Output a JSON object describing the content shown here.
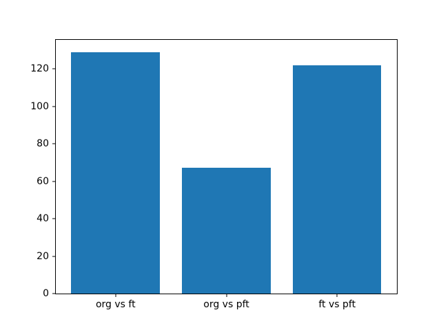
{
  "chart_data": {
    "type": "bar",
    "categories": [
      "org vs ft",
      "org vs pft",
      "ft vs pft"
    ],
    "values": [
      129,
      67,
      122
    ],
    "title": "",
    "xlabel": "",
    "ylabel": "",
    "ylim": [
      0,
      135.45
    ],
    "yticks": [
      0,
      20,
      40,
      60,
      80,
      100,
      120
    ],
    "bar_color": "#1f77b4",
    "axes_color": "#000000",
    "background_color": "#ffffff",
    "grid": false,
    "legend_position": "none",
    "bar_width_fraction": 0.8
  }
}
